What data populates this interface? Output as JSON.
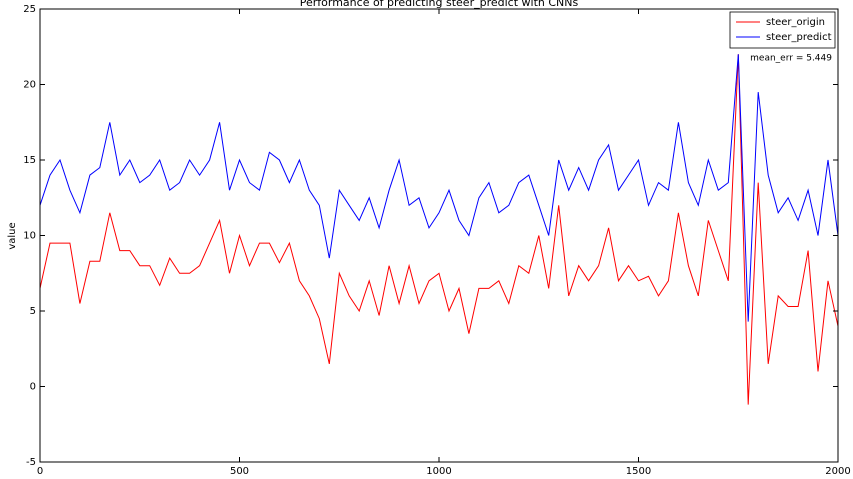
{
  "chart_data": {
    "type": "line",
    "title": "Performance of predicting steer_predict with CNNs",
    "ylabel": "value",
    "annotation": "mean_err = 5.449",
    "x": [
      0,
      25,
      50,
      75,
      100,
      125,
      150,
      175,
      200,
      225,
      250,
      275,
      300,
      325,
      350,
      375,
      400,
      425,
      450,
      475,
      500,
      525,
      550,
      575,
      600,
      625,
      650,
      675,
      700,
      725,
      750,
      775,
      800,
      825,
      850,
      875,
      900,
      925,
      950,
      975,
      1000,
      1025,
      1050,
      1075,
      1100,
      1125,
      1150,
      1175,
      1200,
      1225,
      1250,
      1275,
      1300,
      1325,
      1350,
      1375,
      1400,
      1425,
      1450,
      1475,
      1500,
      1525,
      1550,
      1575,
      1600,
      1625,
      1650,
      1675,
      1700,
      1725,
      1750,
      1775,
      1800,
      1825,
      1850,
      1875,
      1900,
      1925,
      1950,
      1975,
      2000
    ],
    "series": [
      {
        "name": "steer_origin",
        "color": "#ff0000",
        "values": [
          6.5,
          9.5,
          9.5,
          9.5,
          5.5,
          8.3,
          8.3,
          11.5,
          9,
          9,
          8,
          8,
          6.7,
          8.5,
          7.5,
          7.5,
          8,
          9.5,
          11,
          7.5,
          10,
          8,
          9.5,
          9.5,
          8.2,
          9.5,
          7,
          6,
          4.5,
          1.5,
          7.5,
          6,
          5,
          7,
          4.7,
          8,
          5.5,
          8,
          5.5,
          7,
          7.5,
          5,
          6.5,
          3.5,
          6.5,
          6.5,
          7,
          5.5,
          8,
          7.5,
          10,
          6.5,
          12,
          6,
          8,
          7,
          8,
          10.5,
          7,
          8,
          7,
          7.3,
          6,
          7,
          11.5,
          8,
          6,
          11,
          9,
          7,
          22,
          -1.2,
          13.5,
          1.5,
          6,
          5.3,
          5.3,
          9,
          1,
          7,
          4
        ]
      },
      {
        "name": "steer_predict",
        "color": "#0000ff",
        "values": [
          12,
          14,
          15,
          13,
          11.5,
          14,
          14.5,
          17.5,
          14,
          15,
          13.5,
          14,
          15,
          13,
          13.5,
          15,
          14,
          15,
          17.5,
          13,
          15,
          13.5,
          13,
          15.5,
          15,
          13.5,
          15,
          13,
          12,
          8.5,
          13,
          12,
          11,
          12.5,
          10.5,
          13,
          15,
          12,
          12.5,
          10.5,
          11.5,
          13,
          11,
          10,
          12.5,
          13.5,
          11.5,
          12,
          13.5,
          14,
          12,
          10,
          15,
          13,
          14.5,
          13,
          15,
          16,
          13,
          14,
          15,
          12,
          13.5,
          13,
          17.5,
          13.5,
          12,
          15,
          13,
          13.5,
          22,
          4.3,
          19.5,
          14,
          11.5,
          12.5,
          11,
          13,
          10,
          15,
          10
        ]
      }
    ],
    "xlim": [
      0,
      2000
    ],
    "xticks": [
      0,
      500,
      1000,
      1500,
      2000
    ],
    "ylim": [
      -5,
      25
    ],
    "yticks": [
      -5,
      0,
      5,
      10,
      15,
      20,
      25
    ],
    "legend": "upper right"
  }
}
